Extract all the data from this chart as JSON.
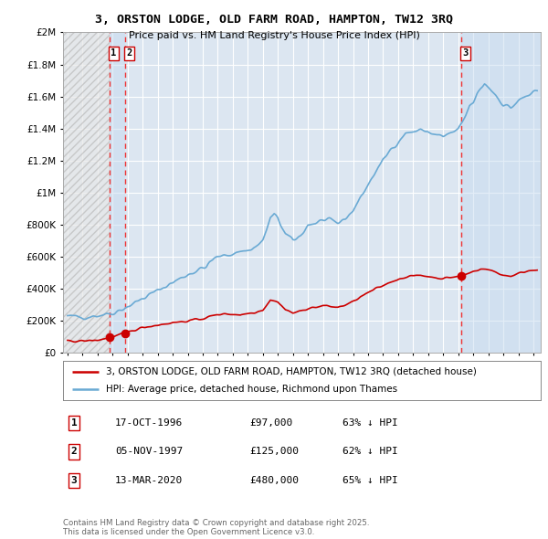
{
  "title": "3, ORSTON LODGE, OLD FARM ROAD, HAMPTON, TW12 3RQ",
  "subtitle": "Price paid vs. HM Land Registry's House Price Index (HPI)",
  "ylabel_ticks": [
    "£0",
    "£200K",
    "£400K",
    "£600K",
    "£800K",
    "£1M",
    "£1.2M",
    "£1.4M",
    "£1.6M",
    "£1.8M",
    "£2M"
  ],
  "ytick_values": [
    0,
    200000,
    400000,
    600000,
    800000,
    1000000,
    1200000,
    1400000,
    1600000,
    1800000,
    2000000
  ],
  "ylim": [
    0,
    2000000
  ],
  "xlim_start": 1993.7,
  "xlim_end": 2025.5,
  "background_color": "#ffffff",
  "plot_bg_color": "#dce6f1",
  "hatch_bg_color": "#cccccc",
  "grid_color": "#ffffff",
  "hpi_line_color": "#6aaad4",
  "price_line_color": "#cc0000",
  "vline_color": "#ee3333",
  "shade_color": "#c8dcf0",
  "transactions": [
    {
      "id": 1,
      "date_num": 1996.79,
      "price": 97000,
      "date_str": "17-OCT-1996",
      "pct": "63%"
    },
    {
      "id": 2,
      "date_num": 1997.84,
      "price": 125000,
      "date_str": "05-NOV-1997",
      "pct": "62%"
    },
    {
      "id": 3,
      "date_num": 2020.19,
      "price": 480000,
      "date_str": "13-MAR-2020",
      "pct": "65%"
    }
  ],
  "legend_label_red": "3, ORSTON LODGE, OLD FARM ROAD, HAMPTON, TW12 3RQ (detached house)",
  "legend_label_blue": "HPI: Average price, detached house, Richmond upon Thames",
  "footnote": "Contains HM Land Registry data © Crown copyright and database right 2025.\nThis data is licensed under the Open Government Licence v3.0."
}
